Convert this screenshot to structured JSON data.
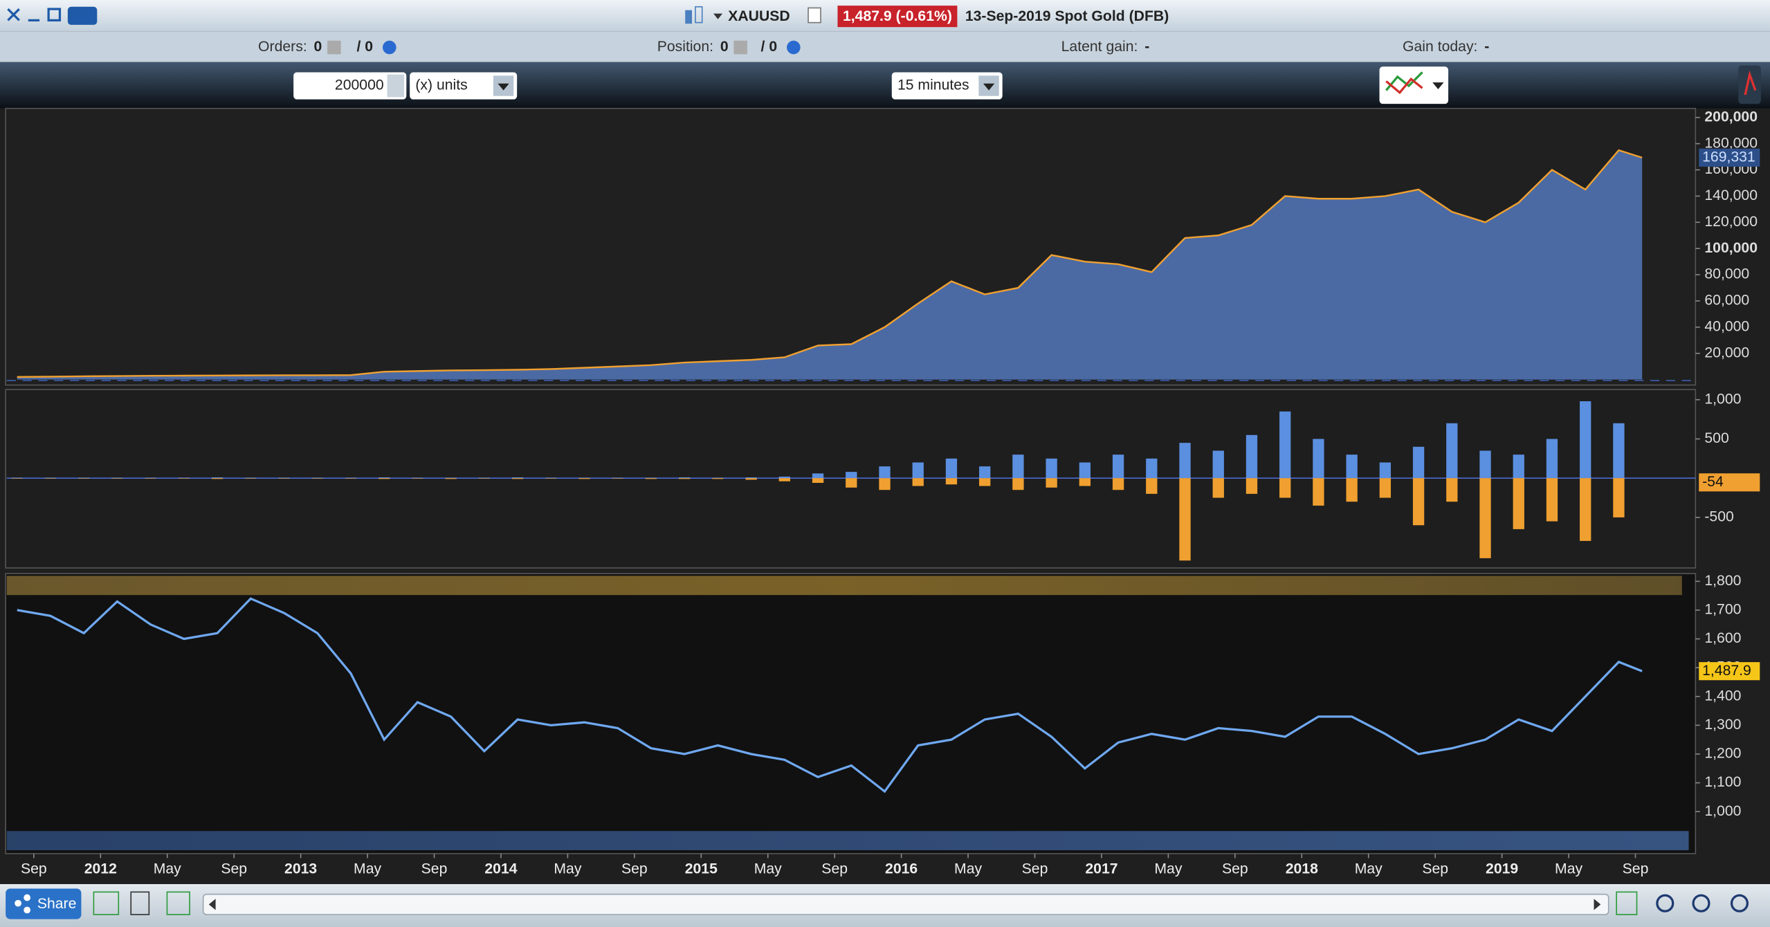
{
  "window": {
    "symbol": "XAUUSD",
    "price": "1,487.9 (-0.61%)",
    "description": "13-Sep-2019 Spot Gold (DFB)"
  },
  "status_bar": {
    "orders_label": "Orders:",
    "orders_value": "0",
    "orders_total": "/ 0",
    "position_label": "Position:",
    "position_value": "0",
    "position_total": "/ 0",
    "latent_gain_label": "Latent gain:",
    "latent_gain_value": "-",
    "gain_today_label": "Gain today:",
    "gain_today_value": "-"
  },
  "toolbar": {
    "quantity": "200000",
    "units": "(x) units",
    "timeframe": "15 minutes"
  },
  "footer": {
    "share": "Share"
  },
  "chart_data": [
    {
      "type": "area",
      "color": "#4b6aa3",
      "line_color": "#f0a030",
      "x": [
        1,
        3,
        5,
        7,
        9,
        11,
        13,
        15,
        17,
        19,
        21,
        23,
        25,
        27,
        29,
        31,
        33,
        35,
        37,
        39,
        41,
        43,
        45,
        47,
        49,
        51,
        53,
        55,
        57,
        59,
        61,
        63,
        65,
        67,
        69,
        71,
        73,
        75,
        77,
        79,
        81,
        83,
        85,
        87,
        89,
        91,
        93,
        95,
        97,
        98.4
      ],
      "values": [
        2000,
        2200,
        2500,
        2700,
        2900,
        3000,
        3100,
        3200,
        3300,
        3300,
        3400,
        6000,
        6500,
        7000,
        7200,
        7500,
        8000,
        9000,
        10000,
        11000,
        13000,
        14000,
        15000,
        17000,
        26000,
        27000,
        40000,
        58000,
        75000,
        65000,
        70000,
        95000,
        90000,
        88000,
        82000,
        108000,
        110000,
        118000,
        140000,
        138000,
        138000,
        140000,
        145000,
        128000,
        120000,
        135000,
        160000,
        145000,
        175000,
        169331
      ],
      "xlim": [
        0.38,
        101.6
      ],
      "ylim": [
        -3300,
        206900
      ],
      "yticks": [
        {
          "value": 20000,
          "label": "20,000"
        },
        {
          "value": 40000,
          "label": "40,000"
        },
        {
          "value": 60000,
          "label": "60,000"
        },
        {
          "value": 80000,
          "label": "80,000"
        },
        {
          "value": 100000,
          "label": "100,000"
        },
        {
          "value": 120000,
          "label": "120,000"
        },
        {
          "value": 140000,
          "label": "140,000"
        },
        {
          "value": 160000,
          "label": "160,000"
        },
        {
          "value": 180000,
          "label": "180,000"
        },
        {
          "value": 200000,
          "label": "200,000"
        }
      ],
      "current_value": 169331,
      "current_label": "169,331"
    },
    {
      "type": "bar",
      "x": [
        1,
        3,
        5,
        7,
        9,
        11,
        13,
        15,
        17,
        19,
        21,
        23,
        25,
        27,
        29,
        31,
        33,
        35,
        37,
        39,
        41,
        43,
        45,
        47,
        49,
        51,
        53,
        55,
        57,
        59,
        61,
        63,
        65,
        67,
        69,
        71,
        73,
        75,
        77,
        79,
        81,
        83,
        85,
        87,
        89,
        91,
        93,
        95,
        97
      ],
      "series": [
        {
          "color": "#5b8fe0",
          "values": [
            5,
            5,
            5,
            5,
            5,
            5,
            10,
            5,
            5,
            5,
            5,
            10,
            5,
            5,
            5,
            10,
            5,
            5,
            5,
            5,
            10,
            5,
            10,
            20,
            60,
            80,
            150,
            200,
            250,
            150,
            300,
            250,
            200,
            300,
            250,
            450,
            350,
            550,
            850,
            500,
            300,
            200,
            400,
            700,
            350,
            300,
            500,
            980,
            700
          ]
        },
        {
          "color": "#f0a030",
          "values": [
            -5,
            -5,
            -5,
            -5,
            -5,
            -5,
            -10,
            -5,
            -5,
            -5,
            -5,
            -10,
            -5,
            -10,
            -5,
            -10,
            -5,
            -10,
            -5,
            -10,
            -10,
            -10,
            -20,
            -40,
            -60,
            -120,
            -150,
            -100,
            -80,
            -100,
            -150,
            -120,
            -100,
            -150,
            -200,
            -1050,
            -250,
            -200,
            -250,
            -350,
            -300,
            -250,
            -600,
            -300,
            -1020,
            -650,
            -550,
            -800,
            -500
          ]
        }
      ],
      "xlim": [
        0.38,
        101.6
      ],
      "ylim": [
        -1130,
        1115
      ],
      "yticks": [
        {
          "value": 1000,
          "label": "1,000"
        },
        500,
        -500
      ],
      "current_value": -54
    },
    {
      "type": "line",
      "color": "#6fa8f0",
      "x": [
        1,
        3,
        5,
        7,
        9,
        11,
        13,
        15,
        17,
        19,
        21,
        23,
        25,
        27,
        29,
        31,
        33,
        35,
        37,
        39,
        41,
        43,
        45,
        47,
        49,
        51,
        53,
        55,
        57,
        59,
        61,
        63,
        65,
        67,
        69,
        71,
        73,
        75,
        77,
        79,
        81,
        83,
        85,
        87,
        89,
        91,
        93,
        95,
        97,
        98.4
      ],
      "values": [
        1700,
        1680,
        1620,
        1730,
        1650,
        1600,
        1620,
        1740,
        1690,
        1620,
        1480,
        1250,
        1380,
        1330,
        1210,
        1320,
        1300,
        1310,
        1290,
        1220,
        1200,
        1230,
        1200,
        1180,
        1120,
        1160,
        1070,
        1230,
        1250,
        1320,
        1340,
        1260,
        1150,
        1240,
        1270,
        1250,
        1290,
        1280,
        1260,
        1330,
        1330,
        1270,
        1200,
        1220,
        1250,
        1320,
        1280,
        1400,
        1520,
        1487.9
      ],
      "xlim": [
        0.38,
        101.6
      ],
      "ylim": [
        858,
        1819
      ],
      "yticks": [
        {
          "value": 1000,
          "label": "1,000"
        },
        {
          "value": 1100,
          "label": "1,100"
        },
        {
          "value": 1200,
          "label": "1,200"
        },
        {
          "value": 1300,
          "label": "1,300"
        },
        {
          "value": 1400,
          "label": "1,400"
        },
        {
          "value": 1500,
          "label": "1,500"
        },
        {
          "value": 1600,
          "label": "1,600"
        },
        {
          "value": 1700,
          "label": "1,700"
        },
        {
          "value": 1800,
          "label": "1,800"
        }
      ],
      "xticks": [
        {
          "value": 2,
          "label": "Sep"
        },
        {
          "value": 6,
          "label": "2012"
        },
        {
          "value": 10,
          "label": "May"
        },
        {
          "value": 14,
          "label": "Sep"
        },
        {
          "value": 18,
          "label": "2013"
        },
        {
          "value": 22,
          "label": "May"
        },
        {
          "value": 26,
          "label": "Sep"
        },
        {
          "value": 30,
          "label": "2014"
        },
        {
          "value": 34,
          "label": "May"
        },
        {
          "value": 38,
          "label": "Sep"
        },
        {
          "value": 42,
          "label": "2015"
        },
        {
          "value": 46,
          "label": "May"
        },
        {
          "value": 50,
          "label": "Sep"
        },
        {
          "value": 54,
          "label": "2016"
        },
        {
          "value": 58,
          "label": "May"
        },
        {
          "value": 62,
          "label": "Sep"
        },
        {
          "value": 66,
          "label": "2017"
        },
        {
          "value": 70,
          "label": "May"
        },
        {
          "value": 74,
          "label": "Sep"
        },
        {
          "value": 78,
          "label": "2018"
        },
        {
          "value": 82,
          "label": "May"
        },
        {
          "value": 86,
          "label": "Sep"
        },
        {
          "value": 90,
          "label": "2019"
        },
        {
          "value": 94,
          "label": "May"
        },
        {
          "value": 98,
          "label": "Sep"
        }
      ],
      "current_value": 1487.9,
      "current_label": "1,487.9"
    }
  ]
}
